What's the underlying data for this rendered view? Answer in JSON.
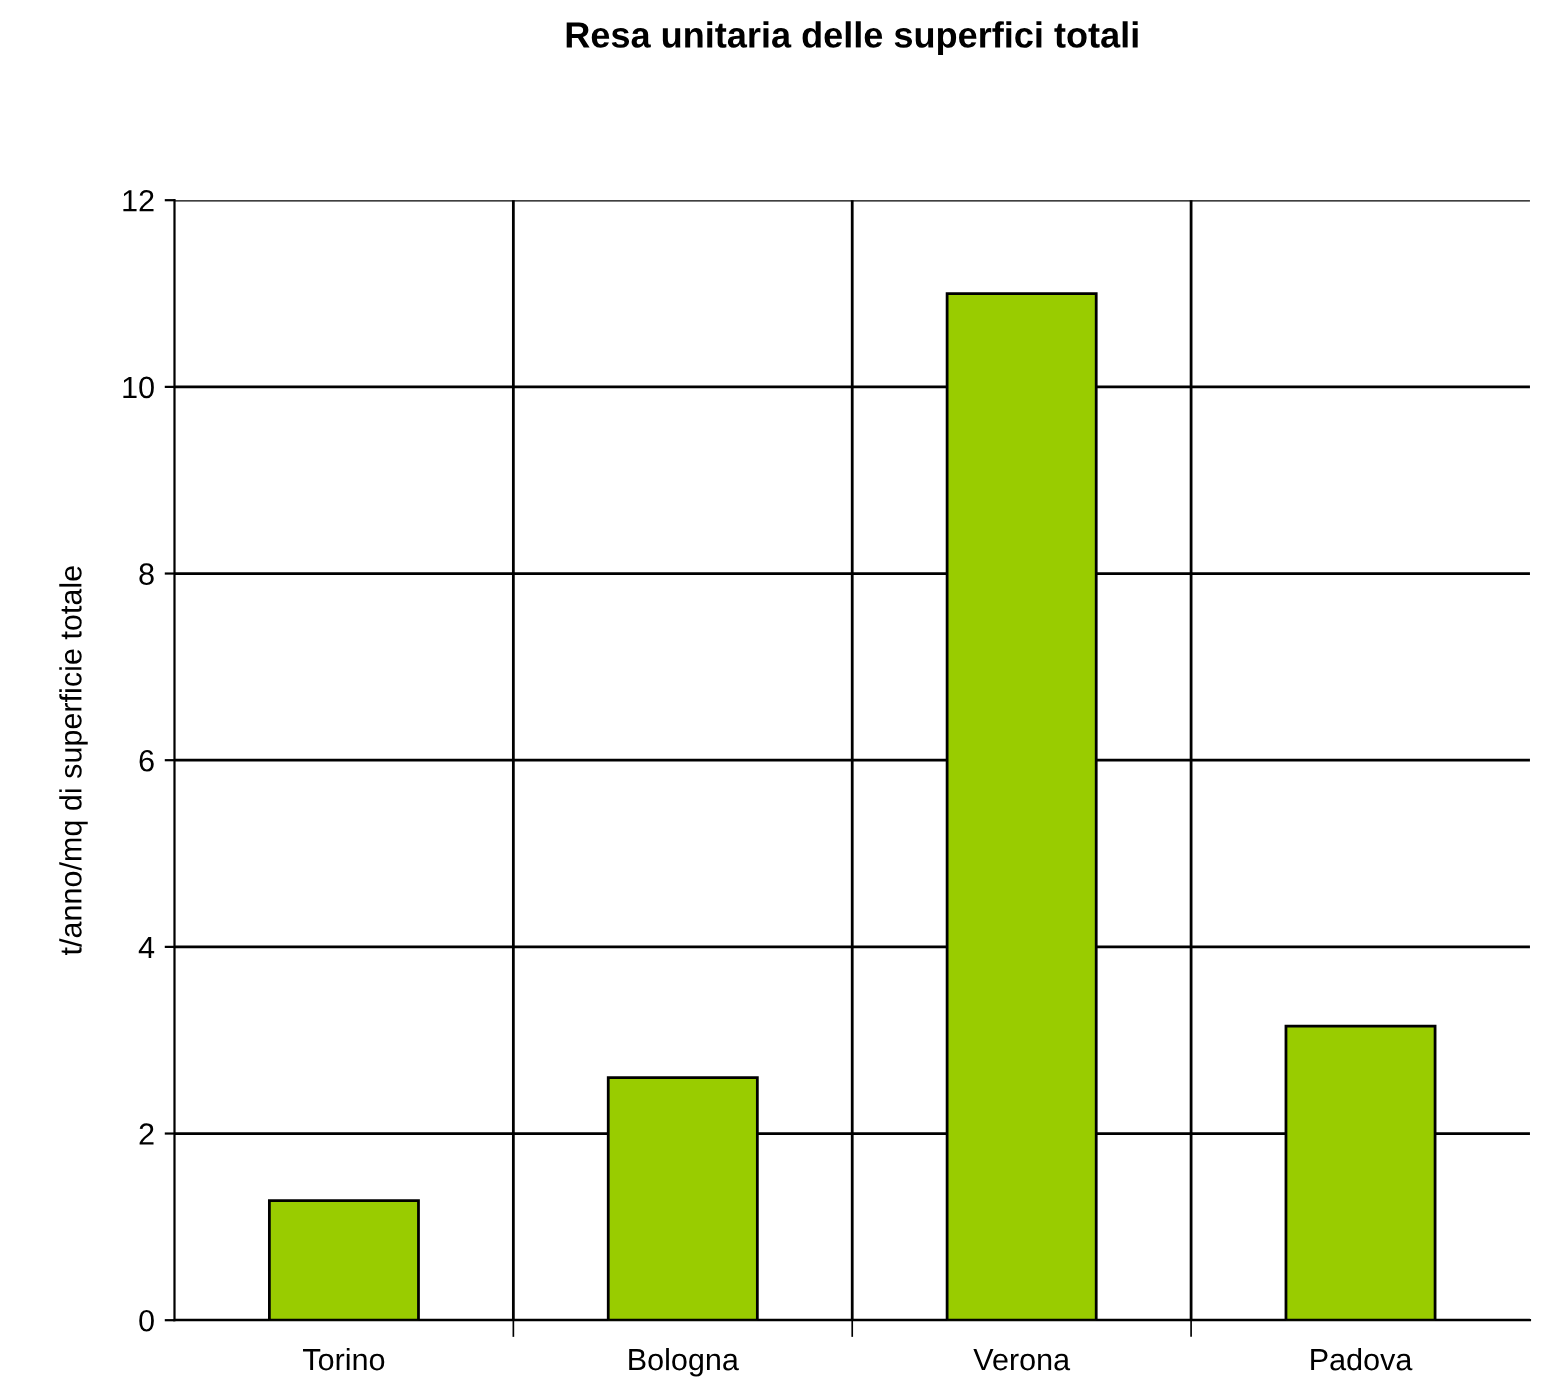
{
  "chart_data": {
    "type": "bar",
    "title": "Resa unitaria delle superfici totali",
    "ylabel": "t/anno/mq di superficie totale",
    "categories": [
      "Torino",
      "Bologna",
      "Verona",
      "Padova"
    ],
    "values": [
      1.28,
      2.6,
      11.0,
      3.15
    ],
    "color": "#99cc00",
    "ylim": [
      0,
      12
    ],
    "yticks": [
      0,
      2,
      4,
      6,
      8,
      10,
      12
    ],
    "grid": true
  }
}
